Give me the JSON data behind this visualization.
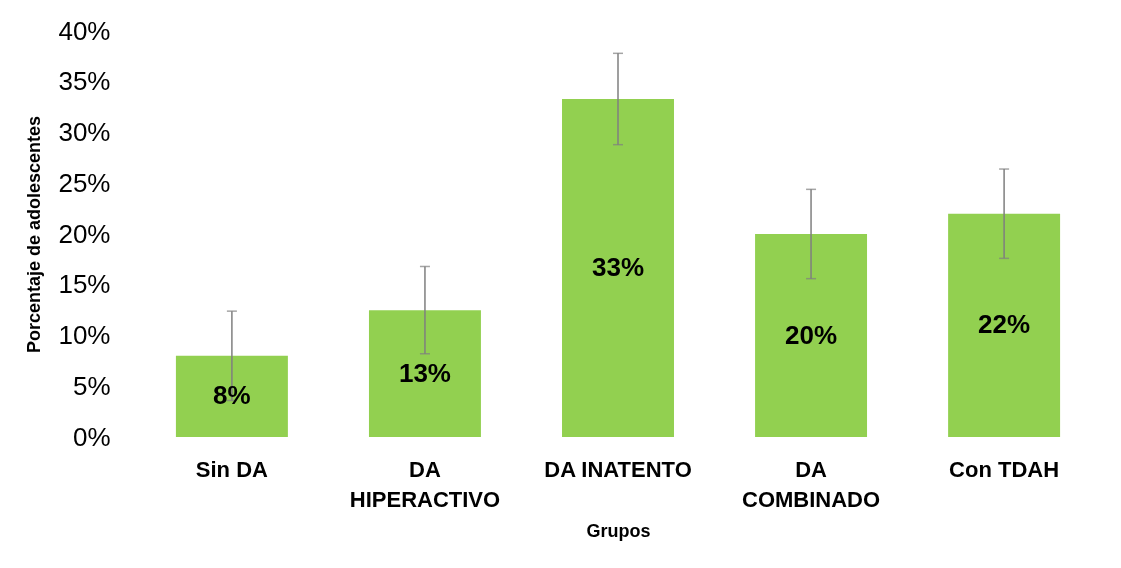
{
  "chart_data": {
    "type": "bar",
    "xlabel": "Grupos",
    "ylabel": "Porcentaje de adolescentes",
    "categories": [
      "Sin DA",
      "DA\nHIPERACTIVO",
      "DA INATENTO",
      "DA\nCOMBINADO",
      "Con TDAH"
    ],
    "values": [
      8,
      12.5,
      33.3,
      20,
      22
    ],
    "errors": [
      4.4,
      4.3,
      4.5,
      4.4,
      4.4
    ],
    "value_labels": [
      "8%",
      "13%",
      "33%",
      "20%",
      "22%"
    ],
    "color": "#92d050",
    "ylim": [
      0,
      40
    ],
    "yticks": [
      {
        "value": 0,
        "label": "0%"
      },
      {
        "value": 5,
        "label": "5%"
      },
      {
        "value": 10,
        "label": "10%"
      },
      {
        "value": 15,
        "label": "15%"
      },
      {
        "value": 20,
        "label": "20%"
      },
      {
        "value": 25,
        "label": "25%"
      },
      {
        "value": 30,
        "label": "30%"
      },
      {
        "value": 35,
        "label": "35%"
      },
      {
        "value": 40,
        "label": "40%"
      }
    ],
    "grid": false
  }
}
